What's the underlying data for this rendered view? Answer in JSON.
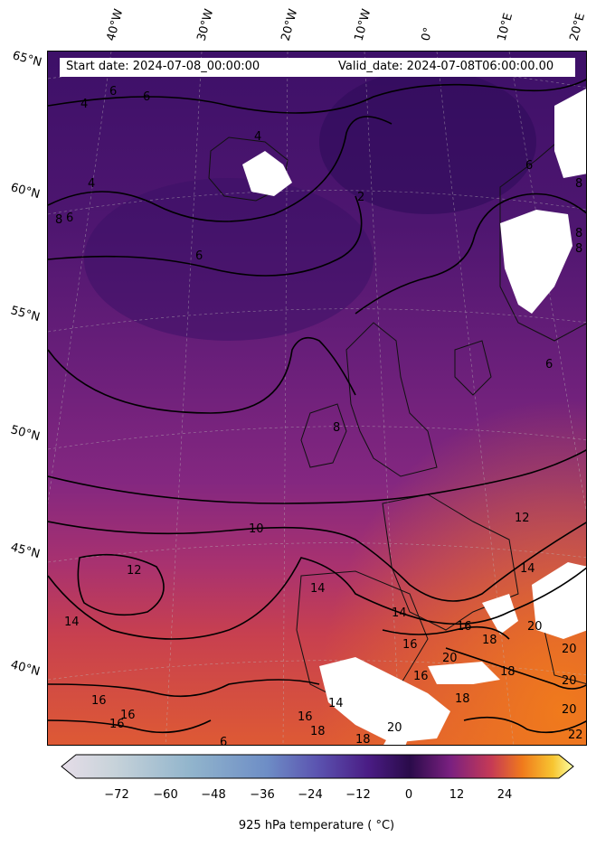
{
  "header": {
    "start_date": "Start date: 2024-07-08_00:00:00",
    "valid_date": "Valid_date: 2024-07-08T06:00:00.00"
  },
  "latitude_labels": [
    "65°N",
    "60°N",
    "55°N",
    "50°N",
    "45°N",
    "40°N"
  ],
  "longitude_labels": [
    "40°W",
    "30°W",
    "20°W",
    "10°W",
    "0°",
    "10°E",
    "20°E"
  ],
  "contour_labels": [
    "6",
    "4",
    "6",
    "4",
    "2",
    "4",
    "6",
    "8",
    "6",
    "8",
    "6",
    "8",
    "8",
    "8",
    "6",
    "10",
    "12",
    "14",
    "12",
    "14",
    "16",
    "14",
    "16",
    "18",
    "20",
    "14",
    "16",
    "16",
    "16",
    "18",
    "18",
    "18",
    "20",
    "20",
    "20",
    "20",
    "22",
    "18",
    "20",
    "14",
    "16",
    "16",
    "6"
  ],
  "colorbar": {
    "ticks": [
      "−72",
      "−60",
      "−48",
      "−36",
      "−24",
      "−12",
      "0",
      "12",
      "24"
    ],
    "label": "925 hPa temperature ($^\\circ$C)",
    "label_rendered": "925 hPa temperature ( °C)",
    "colormap": "inferno",
    "range": [
      -84,
      36
    ]
  },
  "colors": {
    "cold_purple": "#3b0f6f",
    "mid_magenta": "#8c2981",
    "warm_orange": "#dd513a",
    "hot_orange": "#f37819",
    "masked_terrain": "#ffffff"
  }
}
